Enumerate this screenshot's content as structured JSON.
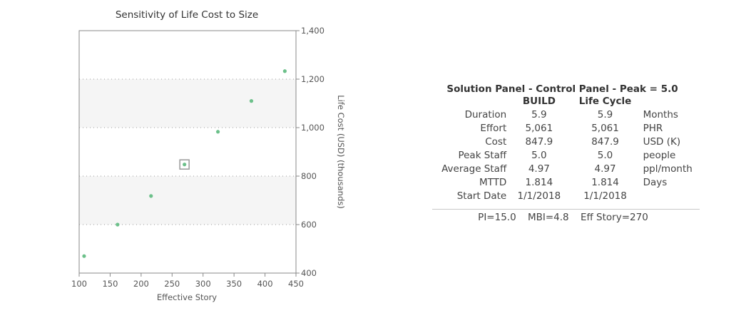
{
  "chart_data": {
    "type": "scatter",
    "title": "Sensitivity of Life Cost to Size",
    "xlabel": "Effective Story",
    "ylabel": "Life Cost (USD) (thousands)",
    "xlim": [
      100,
      450
    ],
    "ylim": [
      400,
      1400
    ],
    "xticks": [
      100,
      150,
      200,
      250,
      300,
      350,
      400,
      450
    ],
    "yticks": [
      400,
      600,
      800,
      1000,
      1200,
      1400
    ],
    "xtick_labels": [
      "100",
      "150",
      "200",
      "250",
      "300",
      "350",
      "400",
      "450"
    ],
    "ytick_labels": [
      "400",
      "600",
      "800",
      "1,000",
      "1,200",
      "1,400"
    ],
    "points": [
      {
        "x": 108,
        "y": 470
      },
      {
        "x": 162,
        "y": 600
      },
      {
        "x": 216,
        "y": 718
      },
      {
        "x": 270,
        "y": 848,
        "highlighted": true
      },
      {
        "x": 324,
        "y": 983
      },
      {
        "x": 378,
        "y": 1110
      },
      {
        "x": 432,
        "y": 1233
      }
    ],
    "grid": "horizontal-dotted",
    "bands": [
      [
        600,
        800
      ],
      [
        1000,
        1200
      ]
    ],
    "point_color": "#6cc08a",
    "highlight_color": "#999999",
    "band_color": "#f5f5f5"
  },
  "panel": {
    "title": "Solution Panel - Control Panel - Peak = 5.0",
    "col_build": "BUILD",
    "col_life": "Life Cycle",
    "rows": [
      {
        "label": "Duration",
        "build": "5.9",
        "life": "5.9",
        "unit": "Months"
      },
      {
        "label": "Effort",
        "build": "5,061",
        "life": "5,061",
        "unit": "PHR"
      },
      {
        "label": "Cost",
        "build": "847.9",
        "life": "847.9",
        "unit": "USD (K)"
      },
      {
        "label": "Peak Staff",
        "build": "5.0",
        "life": "5.0",
        "unit": "people"
      },
      {
        "label": "Average Staff",
        "build": "4.97",
        "life": "4.97",
        "unit": "ppl/month"
      },
      {
        "label": "MTTD",
        "build": "1.814",
        "life": "1.814",
        "unit": "Days"
      },
      {
        "label": "Start Date",
        "build": "1/1/2018",
        "life": "1/1/2018",
        "unit": ""
      }
    ],
    "footer": {
      "pi": "PI=15.0",
      "mbi": "MBI=4.8",
      "eff_story": "Eff Story=270"
    }
  }
}
